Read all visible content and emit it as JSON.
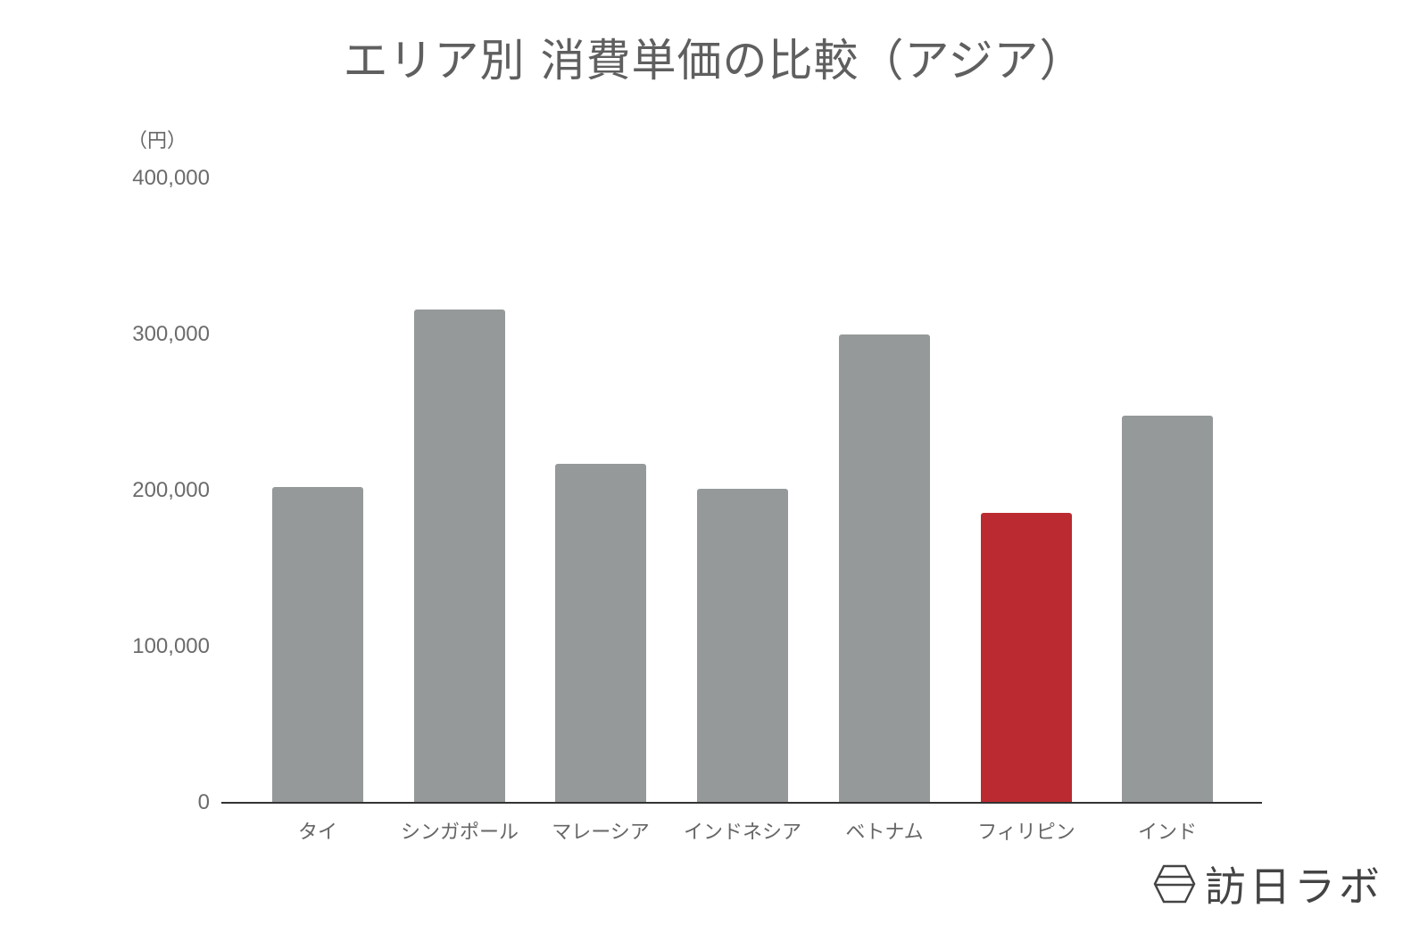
{
  "title": "エリア別 消費単価の比較（アジア）",
  "y_unit": "（円）",
  "logo": {
    "text": "訪日ラボ",
    "icon": "hexagon-logo-icon"
  },
  "colors": {
    "default_bar": "#969999",
    "highlight_bar": "#bb2a30",
    "axis": "#333333",
    "text": "#666666"
  },
  "y_ticks": [
    "400,000",
    "300,000",
    "200,000",
    "100,000",
    "0"
  ],
  "chart_data": {
    "type": "bar",
    "title": "エリア別 消費単価の比較（アジア）",
    "xlabel": "",
    "ylabel": "（円）",
    "ylim": [
      0,
      400000
    ],
    "yticks": [
      0,
      100000,
      200000,
      300000,
      400000
    ],
    "grid": false,
    "legend": null,
    "categories": [
      "タイ",
      "シンガポール",
      "マレーシア",
      "インドネシア",
      "ベトナム",
      "フィリピン",
      "インド"
    ],
    "values": [
      202300,
      316600,
      217700,
      201700,
      300600,
      185700,
      248600
    ],
    "highlight": "フィリピン"
  }
}
